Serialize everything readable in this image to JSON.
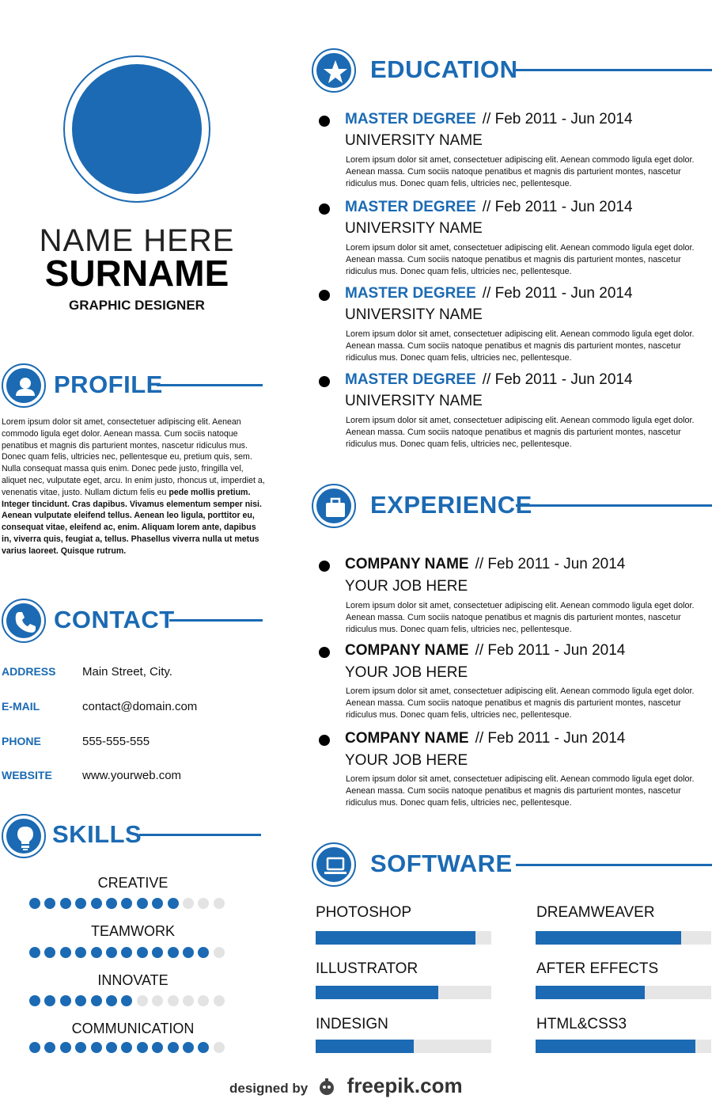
{
  "person": {
    "first_name": "NAME HERE",
    "surname": "SURNAME",
    "role": "GRAPHIC DESIGNER"
  },
  "profile": {
    "title": "PROFILE",
    "text_regular": "Lorem ipsum dolor sit amet, consectetuer adipiscing elit. Aenean commodo ligula eget dolor. Aenean massa. Cum sociis natoque penatibus et magnis dis parturient montes, nascetur ridiculus mus. Donec quam felis, ultricies nec, pellentesque eu, pretium quis, sem. Nulla consequat massa quis enim. Donec pede justo, fringilla vel, aliquet nec, vulputate eget, arcu. In enim justo, rhoncus ut, imperdiet a, venenatis vitae, justo. Nullam dictum felis eu ",
    "text_bold": "pede mollis pretium. Integer tincidunt. Cras dapibus. Vivamus elementum semper nisi. Aenean vulputate eleifend tellus. Aenean leo ligula, porttitor eu, consequat vitae, eleifend ac, enim. Aliquam lorem ante, dapibus in, viverra quis, feugiat a, tellus. Phasellus viverra nulla ut metus varius laoreet. Quisque rutrum."
  },
  "contact": {
    "title": "CONTACT",
    "rows": [
      {
        "label": "ADDRESS",
        "value": "Main Street, City."
      },
      {
        "label": "E-MAIL",
        "value": "contact@domain.com"
      },
      {
        "label": "PHONE",
        "value": "555-555-555"
      },
      {
        "label": "WEBSITE",
        "value": "www.yourweb.com"
      }
    ]
  },
  "skills": {
    "title": "SKILLS",
    "dots_total": 13,
    "items": [
      {
        "name": "CREATIVE",
        "level": 10
      },
      {
        "name": "TEAMWORK",
        "level": 12
      },
      {
        "name": "INNOVATE",
        "level": 7
      },
      {
        "name": "COMMUNICATION",
        "level": 12
      }
    ]
  },
  "education": {
    "title": "EDUCATION",
    "items": [
      {
        "degree": "MASTER DEGREE",
        "date": "// Feb 2011 - Jun 2014",
        "school": "UNIVERSITY NAME",
        "desc": "Lorem ipsum dolor sit amet, consectetuer adipiscing elit. Aenean commodo ligula eget dolor. Aenean massa. Cum sociis natoque penatibus et magnis dis parturient montes, nascetur ridiculus mus. Donec quam felis, ultricies nec, pellentesque."
      },
      {
        "degree": "MASTER DEGREE",
        "date": "// Feb 2011 - Jun 2014",
        "school": "UNIVERSITY NAME",
        "desc": "Lorem ipsum dolor sit amet, consectetuer adipiscing elit. Aenean commodo ligula eget dolor. Aenean massa. Cum sociis natoque penatibus et magnis dis parturient montes, nascetur ridiculus mus. Donec quam felis, ultricies nec, pellentesque."
      },
      {
        "degree": "MASTER DEGREE",
        "date": "// Feb 2011 - Jun 2014",
        "school": "UNIVERSITY NAME",
        "desc": "Lorem ipsum dolor sit amet, consectetuer adipiscing elit. Aenean commodo ligula eget dolor. Aenean massa. Cum sociis natoque penatibus et magnis dis parturient montes, nascetur ridiculus mus. Donec quam felis, ultricies nec, pellentesque."
      },
      {
        "degree": "MASTER DEGREE",
        "date": "// Feb 2011 - Jun 2014",
        "school": "UNIVERSITY NAME",
        "desc": "Lorem ipsum dolor sit amet, consectetuer adipiscing elit. Aenean commodo ligula eget dolor. Aenean massa. Cum sociis natoque penatibus et magnis dis parturient montes, nascetur ridiculus mus. Donec quam felis, ultricies nec, pellentesque."
      }
    ]
  },
  "experience": {
    "title": "EXPERIENCE",
    "items": [
      {
        "company": "COMPANY NAME",
        "date": "// Feb 2011 - Jun 2014",
        "job": "YOUR JOB HERE",
        "desc": "Lorem ipsum dolor sit amet, consectetuer adipiscing elit. Aenean commodo ligula eget dolor. Aenean massa. Cum sociis natoque penatibus et magnis dis parturient montes, nascetur ridiculus mus. Donec quam felis, ultricies nec, pellentesque."
      },
      {
        "company": "COMPANY NAME",
        "date": "// Feb 2011 - Jun 2014",
        "job": "YOUR JOB HERE",
        "desc": "Lorem ipsum dolor sit amet, consectetuer adipiscing elit. Aenean commodo ligula eget dolor. Aenean massa. Cum sociis natoque penatibus et magnis dis parturient montes, nascetur ridiculus mus. Donec quam felis, ultricies nec, pellentesque."
      },
      {
        "company": "COMPANY NAME",
        "date": "// Feb 2011 - Jun 2014",
        "job": "YOUR JOB HERE",
        "desc": "Lorem ipsum dolor sit amet, consectetuer adipiscing elit. Aenean commodo ligula eget dolor. Aenean massa. Cum sociis natoque penatibus et magnis dis parturient montes, nascetur ridiculus mus. Donec quam felis, ultricies nec, pellentesque."
      }
    ]
  },
  "software": {
    "title": "SOFTWARE",
    "items": [
      {
        "name": "PHOTOSHOP",
        "level": 0.91
      },
      {
        "name": "DREAMWEAVER",
        "level": 0.83
      },
      {
        "name": "ILLUSTRATOR",
        "level": 0.7
      },
      {
        "name": "AFTER EFFECTS",
        "level": 0.62
      },
      {
        "name": "INDESIGN",
        "level": 0.56
      },
      {
        "name": "HTML&CSS3",
        "level": 0.91
      }
    ]
  },
  "footer": {
    "designed_by": "designed by",
    "brand": "freepik.com"
  },
  "colors": {
    "accent": "#1b6ab3",
    "track": "#e6e6e6"
  },
  "icons": {
    "profile": "user-icon",
    "contact": "phone-icon",
    "skills": "lightbulb-icon",
    "education": "star-icon",
    "experience": "briefcase-icon",
    "software": "laptop-icon"
  }
}
